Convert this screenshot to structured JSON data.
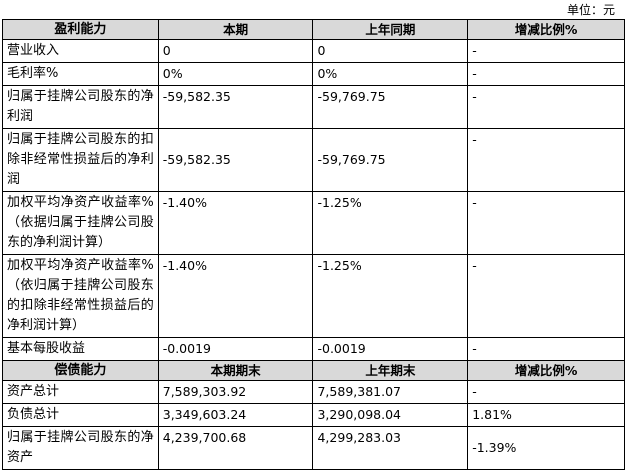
{
  "unit": "单位：元",
  "table": {
    "rows": [
      [
        "盈利能力",
        "本期",
        "上年同期",
        "增减比例%"
      ],
      [
        "营业收入",
        "0",
        "0",
        "-"
      ],
      [
        "毛利率%",
        "0%",
        "0%",
        "-"
      ],
      [
        "归属于挂牌公司股东的净利润",
        "-59,582.35",
        "-59,769.75",
        "-"
      ],
      [
        "归属于挂牌公司股东的扣除非经常性损益后的净利润",
        "-59,582.35",
        "-59,769.75",
        "-"
      ],
      [
        "加权平均净资产收益率%（依据归属于挂牌公司股东的净利润计算）",
        "-1.40%",
        "-1.25%",
        "-"
      ],
      [
        "加权平均净资产收益率%（依归属于挂牌公司股东的扣除非经常性损益后的净利润计算）",
        "-1.40%",
        "-1.25%",
        "-"
      ],
      [
        "基本每股收益",
        "-0.0019",
        "-0.0019",
        "-"
      ],
      [
        "偿债能力",
        "本期期末",
        "上年期末",
        "增减比例%"
      ],
      [
        "资产总计",
        "7,589,303.92",
        "7,589,381.07",
        "-"
      ],
      [
        "负债总计",
        "3,349,603.24",
        "3,290,098.04",
        "1.81%"
      ],
      [
        "归属于挂牌公司股东的净资产",
        "4,239,700.68",
        "4,299,283.03",
        "-1.39%"
      ]
    ]
  }
}
